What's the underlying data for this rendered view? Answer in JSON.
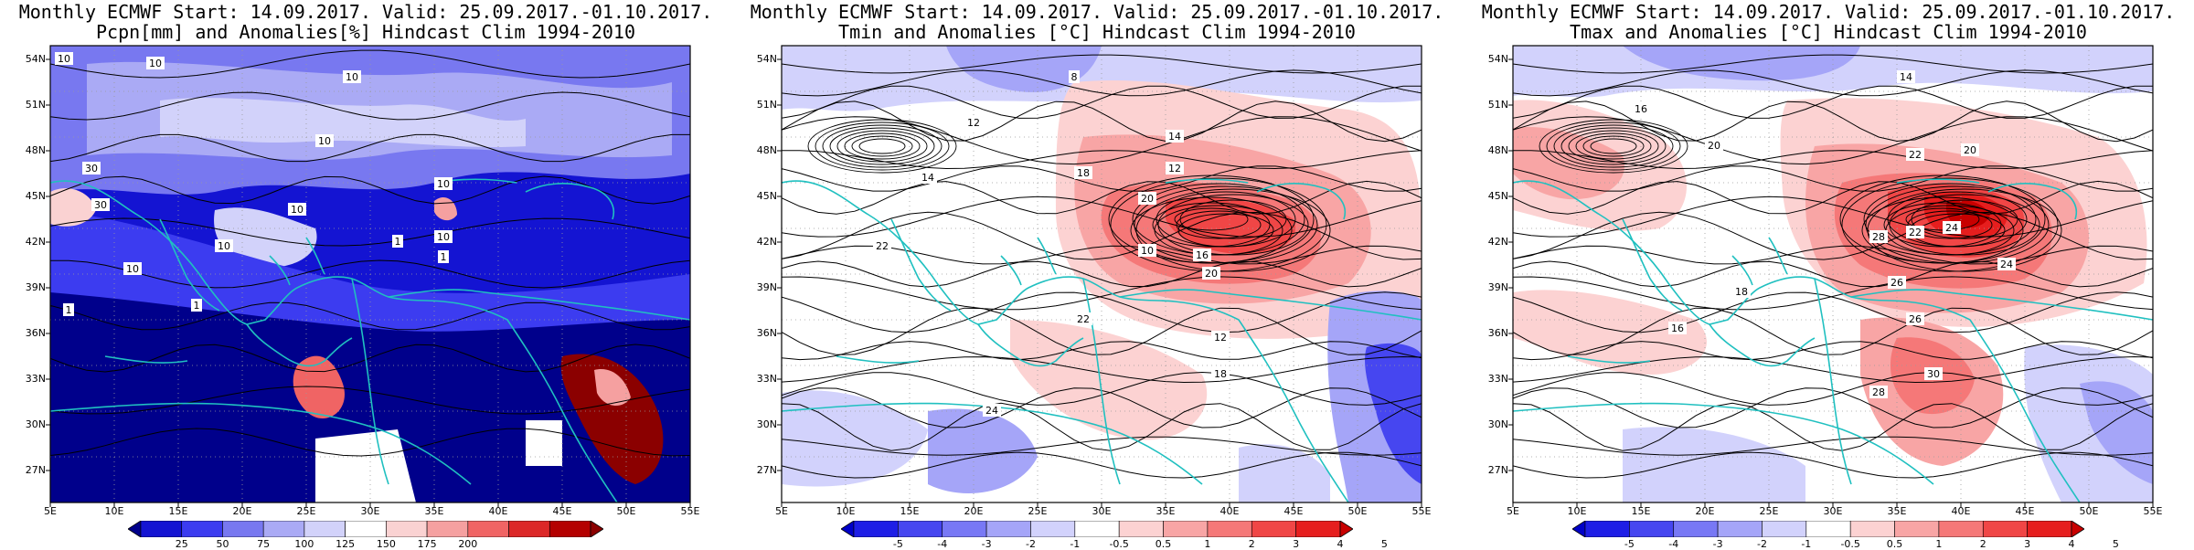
{
  "panels": [
    {
      "title1": "Monthly ECMWF Start: 14.09.2017. Valid: 25.09.2017.-01.10.2017.",
      "title2": "Pcpn[mm] and Anomalies[%] Hindcast Clim 1994-2010",
      "colorbar_ticks": [
        "25",
        "50",
        "75",
        "100",
        "125",
        "150",
        "175",
        "200"
      ],
      "colorbar_colors": [
        "#00008b",
        "#1414d2",
        "#3c3cf0",
        "#7878f0",
        "#aaaaf5",
        "#d2d2fa",
        "#ffffff",
        "#fad2d2",
        "#f5a0a0",
        "#f06464",
        "#dc2828",
        "#b40000",
        "#8b0000"
      ]
    },
    {
      "title1": "Monthly ECMWF Start: 14.09.2017. Valid: 25.09.2017.-01.10.2017.",
      "title2": "Tmin and Anomalies [°C] Hindcast Clim 1994-2010",
      "colorbar_ticks": [
        "-5",
        "-4",
        "-3",
        "-2",
        "-1",
        "-0.5",
        "0.5",
        "1",
        "2",
        "3",
        "4",
        "5"
      ],
      "colorbar_colors": [
        "#0000c8",
        "#1e1ee6",
        "#4646f0",
        "#7878f5",
        "#a5a5f8",
        "#d2d2fc",
        "#ffffff",
        "#fcd2d2",
        "#f8a5a5",
        "#f57878",
        "#f04646",
        "#e61e1e",
        "#c80000"
      ]
    },
    {
      "title1": "Monthly ECMWF Start: 14.09.2017. Valid: 25.09.2017.-01.10.2017.",
      "title2": "Tmax and Anomalies [°C] Hindcast Clim 1994-2010",
      "colorbar_ticks": [
        "-5",
        "-4",
        "-3",
        "-2",
        "-1",
        "-0.5",
        "0.5",
        "1",
        "2",
        "3",
        "4",
        "5"
      ],
      "colorbar_colors": [
        "#0000c8",
        "#1e1ee6",
        "#4646f0",
        "#7878f5",
        "#a5a5f8",
        "#d2d2fc",
        "#ffffff",
        "#fcd2d2",
        "#f8a5a5",
        "#f57878",
        "#f04646",
        "#e61e1e",
        "#c80000"
      ]
    }
  ],
  "lat_labels": [
    "54N",
    "51N",
    "48N",
    "45N",
    "42N",
    "39N",
    "36N",
    "33N",
    "30N",
    "27N"
  ],
  "lon_labels": [
    "5E",
    "10E",
    "15E",
    "20E",
    "25E",
    "30E",
    "35E",
    "40E",
    "45E",
    "50E",
    "55E"
  ],
  "contour_labels": {
    "p0": [
      "10",
      "10",
      "10",
      "30",
      "10",
      "10",
      "30",
      "10",
      "10",
      "10",
      "1",
      "1",
      "10",
      "1",
      "1"
    ],
    "p1": [
      "8",
      "12",
      "14",
      "18",
      "20",
      "12",
      "14",
      "10",
      "16",
      "22",
      "12",
      "20",
      "18",
      "22",
      "24"
    ],
    "p2": [
      "14",
      "16",
      "20",
      "22",
      "24",
      "28",
      "20",
      "22",
      "26",
      "24",
      "30",
      "28",
      "26",
      "18",
      "16"
    ]
  },
  "colors": {
    "coast": "#20c0c0",
    "contour": "#000000"
  }
}
